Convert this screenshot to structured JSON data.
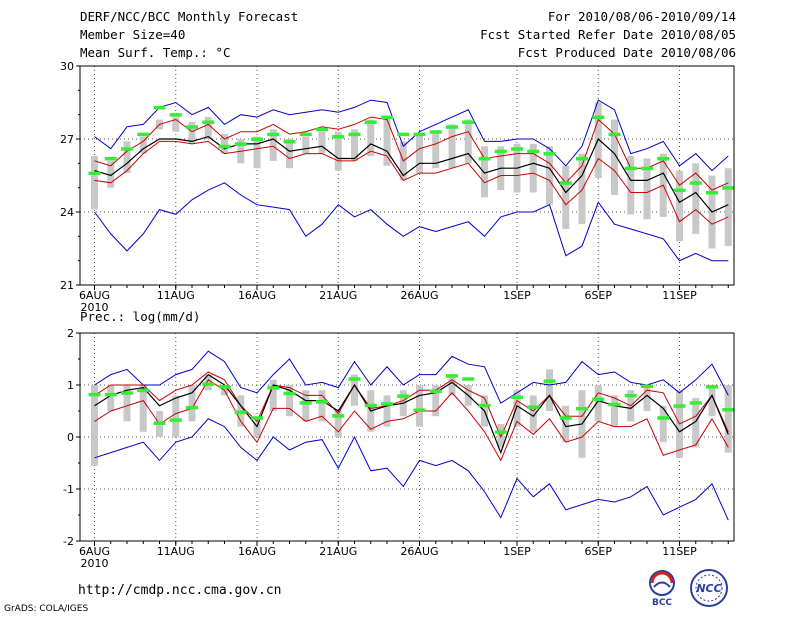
{
  "header": {
    "title": "DERF/NCC/BCC Monthly Forecast",
    "member_size": "Member Size=40",
    "variable": "Mean Surf. Temp.: °C",
    "forecast_range": "For 2010/08/06-2010/09/14",
    "started_refer": "Fcst Started Refer Date 2010/08/05",
    "produced": "Fcst Produced Date 2010/08/06"
  },
  "footer": {
    "url": "http://cmdp.ncc.cma.gov.cn",
    "credit": "GrADS: COLA/IGES",
    "logo_left": "BCC",
    "logo_right": "NCC"
  },
  "colors": {
    "max_min": "#0000cc",
    "sd": "#cc0000",
    "mean": "#000000",
    "median": "#33ee33",
    "box": "#c8c8c8",
    "grid": "#555555"
  },
  "chart_data": [
    {
      "type": "line",
      "title": "Mean Surf. Temp.: °C",
      "ylim": [
        21,
        30
      ],
      "yticks": [
        "21",
        "24",
        "27",
        "30"
      ],
      "ytick_values": [
        21,
        24,
        27,
        30
      ],
      "xtick_labels": [
        "6AUG",
        "11AUG",
        "16AUG",
        "21AUG",
        "26AUG",
        "1SEP",
        "6SEP",
        "11SEP"
      ],
      "xtick_day_index": [
        0,
        5,
        10,
        15,
        20,
        26,
        31,
        36
      ],
      "year_label": "2010",
      "grid": true,
      "series": [
        {
          "name": "max",
          "values": [
            27.1,
            26.6,
            27.5,
            27.6,
            28.3,
            28.5,
            28.0,
            28.3,
            27.6,
            28.0,
            27.9,
            28.2,
            28.0,
            28.1,
            28.2,
            28.1,
            28.3,
            28.6,
            28.5,
            26.7,
            27.3,
            27.6,
            27.9,
            28.2,
            26.9,
            26.9,
            27.0,
            27.0,
            26.6,
            25.9,
            26.7,
            28.6,
            28.2,
            26.4,
            26.6,
            26.9,
            25.9,
            26.4,
            25.7,
            26.3
          ]
        },
        {
          "name": "sd_upper",
          "values": [
            26.1,
            25.9,
            26.5,
            26.9,
            27.6,
            27.8,
            27.3,
            27.6,
            27.0,
            27.3,
            27.3,
            27.6,
            27.2,
            27.3,
            27.5,
            27.4,
            27.6,
            27.9,
            27.8,
            26.1,
            26.6,
            26.8,
            27.1,
            27.3,
            26.2,
            26.3,
            26.4,
            26.4,
            26.0,
            25.2,
            25.9,
            27.8,
            27.2,
            25.8,
            25.8,
            26.1,
            25.1,
            25.6,
            24.9,
            25.2
          ]
        },
        {
          "name": "mean",
          "values": [
            25.7,
            25.5,
            26.0,
            26.6,
            27.0,
            27.0,
            26.9,
            27.1,
            26.6,
            26.8,
            26.8,
            27.0,
            26.5,
            26.6,
            26.7,
            26.2,
            26.2,
            26.8,
            26.5,
            25.5,
            26.0,
            26.0,
            26.2,
            26.4,
            25.6,
            25.8,
            25.8,
            26.0,
            25.8,
            24.8,
            25.5,
            27.0,
            26.4,
            25.3,
            25.3,
            25.6,
            24.4,
            24.8,
            24.0,
            24.3
          ]
        },
        {
          "name": "sd_lower",
          "values": [
            25.3,
            25.2,
            25.7,
            26.4,
            26.9,
            26.9,
            26.8,
            26.9,
            26.4,
            26.5,
            26.6,
            26.7,
            26.2,
            26.4,
            26.4,
            26.1,
            26.1,
            26.5,
            26.3,
            25.3,
            25.6,
            25.6,
            25.8,
            26.0,
            25.2,
            25.5,
            25.5,
            25.6,
            25.3,
            24.3,
            24.9,
            26.2,
            25.7,
            24.8,
            24.8,
            25.1,
            23.6,
            24.1,
            23.5,
            23.8
          ]
        },
        {
          "name": "min",
          "values": [
            24.0,
            23.1,
            22.4,
            23.1,
            24.1,
            23.9,
            24.5,
            24.9,
            25.2,
            24.7,
            24.3,
            24.2,
            24.1,
            23.0,
            23.5,
            24.3,
            23.8,
            24.1,
            23.5,
            23.0,
            23.4,
            23.2,
            23.4,
            23.6,
            23.0,
            23.8,
            24.0,
            24.0,
            24.3,
            22.2,
            22.6,
            24.4,
            23.5,
            23.3,
            23.1,
            22.9,
            22.0,
            22.3,
            22.0,
            22.0
          ]
        },
        {
          "name": "median",
          "values": [
            25.6,
            26.2,
            26.6,
            27.2,
            28.3,
            28.0,
            27.5,
            27.7,
            26.7,
            26.8,
            27.0,
            27.2,
            26.9,
            27.2,
            27.4,
            27.1,
            27.2,
            27.7,
            27.9,
            27.2,
            27.2,
            27.3,
            27.5,
            27.7,
            26.2,
            26.5,
            26.6,
            26.5,
            26.4,
            25.2,
            26.2,
            27.9,
            27.2,
            25.8,
            25.8,
            26.2,
            24.9,
            25.2,
            24.8,
            25.0
          ]
        },
        {
          "name": "box_high",
          "values": [
            26.3,
            26.1,
            26.9,
            27.1,
            27.8,
            27.9,
            27.7,
            27.9,
            27.2,
            27.0,
            27.1,
            27.4,
            27.0,
            27.1,
            27.3,
            27.3,
            27.4,
            27.8,
            27.9,
            26.9,
            27.2,
            27.3,
            27.6,
            27.8,
            26.7,
            26.7,
            26.8,
            26.8,
            26.7,
            25.9,
            26.4,
            28.5,
            27.8,
            26.3,
            26.2,
            26.4,
            25.7,
            26.0,
            25.5,
            25.8
          ]
        },
        {
          "name": "box_low",
          "values": [
            24.1,
            25.0,
            25.6,
            26.4,
            27.4,
            27.3,
            26.8,
            27.0,
            26.4,
            26.0,
            25.8,
            26.1,
            25.8,
            26.4,
            26.4,
            25.7,
            26.1,
            26.3,
            25.9,
            25.3,
            25.6,
            25.8,
            25.8,
            26.0,
            24.6,
            24.9,
            24.8,
            24.8,
            24.3,
            23.3,
            23.5,
            25.4,
            24.7,
            23.9,
            23.7,
            23.8,
            22.8,
            23.1,
            22.5,
            22.6
          ]
        }
      ]
    },
    {
      "type": "line",
      "title": "Prec.: log(mm/d)",
      "ylim": [
        -2,
        2
      ],
      "yticks": [
        "-2",
        "-1",
        "0",
        "1",
        "2"
      ],
      "ytick_values": [
        -2,
        -1,
        0,
        1,
        2
      ],
      "xtick_labels": [
        "6AUG",
        "11AUG",
        "16AUG",
        "21AUG",
        "26AUG",
        "1SEP",
        "6SEP",
        "11SEP"
      ],
      "xtick_day_index": [
        0,
        5,
        10,
        15,
        20,
        26,
        31,
        36
      ],
      "year_label": "2010",
      "grid": true,
      "series": [
        {
          "name": "max",
          "values": [
            1.0,
            1.2,
            1.3,
            1.0,
            1.0,
            1.2,
            1.3,
            1.65,
            1.45,
            0.95,
            0.85,
            1.2,
            1.5,
            1.0,
            1.05,
            0.95,
            1.45,
            1.0,
            1.35,
            1.0,
            1.2,
            1.2,
            1.55,
            1.4,
            1.35,
            0.65,
            0.85,
            1.05,
            1.0,
            1.05,
            1.45,
            1.2,
            1.25,
            1.05,
            1.0,
            1.1,
            0.85,
            1.1,
            1.4,
            0.8
          ]
        },
        {
          "name": "sd_upper",
          "values": [
            0.8,
            1.0,
            1.0,
            1.0,
            0.7,
            0.9,
            1.0,
            1.25,
            1.1,
            0.6,
            0.3,
            1.0,
            0.95,
            0.8,
            0.8,
            0.45,
            1.0,
            0.55,
            0.6,
            0.7,
            0.9,
            0.9,
            1.1,
            0.9,
            0.75,
            0.0,
            0.7,
            0.5,
            0.8,
            0.4,
            0.4,
            0.85,
            0.75,
            0.6,
            0.9,
            0.85,
            0.25,
            0.4,
            0.8,
            0.1
          ]
        },
        {
          "name": "mean",
          "values": [
            0.6,
            0.8,
            0.9,
            0.95,
            0.6,
            0.75,
            0.85,
            1.2,
            1.0,
            0.6,
            0.2,
            1.0,
            0.9,
            0.7,
            0.7,
            0.5,
            1.0,
            0.5,
            0.6,
            0.65,
            0.8,
            0.85,
            1.05,
            0.8,
            0.5,
            -0.3,
            0.6,
            0.4,
            0.8,
            0.2,
            0.25,
            0.7,
            0.6,
            0.55,
            0.8,
            0.55,
            0.1,
            0.3,
            0.8,
            0.05
          ]
        },
        {
          "name": "sd_lower",
          "values": [
            0.3,
            0.5,
            0.6,
            0.7,
            0.25,
            0.45,
            0.55,
            1.1,
            0.9,
            0.3,
            -0.1,
            0.55,
            0.55,
            0.3,
            0.4,
            0.1,
            0.5,
            0.15,
            0.3,
            0.35,
            0.5,
            0.5,
            0.85,
            0.5,
            0.1,
            -0.45,
            0.3,
            0.05,
            0.35,
            -0.1,
            0.0,
            0.3,
            0.2,
            0.2,
            0.35,
            -0.35,
            -0.25,
            -0.15,
            0.35,
            -0.2
          ]
        },
        {
          "name": "min",
          "values": [
            -0.4,
            -0.3,
            -0.2,
            -0.1,
            -0.45,
            -0.1,
            0.0,
            0.35,
            0.2,
            -0.2,
            -0.45,
            0.0,
            -0.25,
            -0.1,
            -0.05,
            -0.6,
            0.0,
            -0.65,
            -0.6,
            -0.95,
            -0.45,
            -0.55,
            -0.45,
            -0.65,
            -1.05,
            -1.55,
            -0.8,
            -1.15,
            -0.9,
            -1.4,
            -1.3,
            -1.2,
            -1.25,
            -1.15,
            -0.95,
            -1.5,
            -1.35,
            -1.2,
            -0.9,
            -1.6
          ]
        },
        {
          "name": "median",
          "values": [
            0.82,
            0.82,
            0.85,
            0.9,
            0.27,
            0.33,
            0.57,
            1.02,
            0.97,
            0.48,
            0.37,
            0.95,
            0.84,
            0.66,
            0.68,
            0.41,
            1.12,
            0.61,
            0.64,
            0.79,
            0.52,
            0.88,
            1.18,
            1.12,
            0.61,
            0.1,
            0.77,
            0.58,
            1.08,
            0.37,
            0.55,
            0.73,
            0.63,
            0.8,
            0.98,
            0.37,
            0.6,
            0.66,
            0.97,
            0.53
          ]
        },
        {
          "name": "box_high",
          "values": [
            1.0,
            1.0,
            1.0,
            1.0,
            0.5,
            0.8,
            1.0,
            1.2,
            1.0,
            0.8,
            0.3,
            1.1,
            1.0,
            0.9,
            0.9,
            0.5,
            1.2,
            0.9,
            0.8,
            0.9,
            1.0,
            1.0,
            1.2,
            1.0,
            0.8,
            0.25,
            0.9,
            0.8,
            1.3,
            0.6,
            0.9,
            1.0,
            0.8,
            0.9,
            1.0,
            0.6,
            0.9,
            0.75,
            1.0,
            1.0
          ]
        },
        {
          "name": "box_low",
          "values": [
            -0.55,
            0.5,
            0.3,
            0.1,
            0.0,
            0.0,
            0.3,
            0.9,
            0.8,
            0.2,
            0.0,
            0.5,
            0.4,
            0.3,
            0.3,
            0.0,
            0.6,
            0.1,
            0.2,
            0.4,
            0.2,
            0.4,
            0.8,
            0.6,
            0.2,
            -0.2,
            0.2,
            0.1,
            0.5,
            -0.1,
            -0.4,
            0.3,
            0.2,
            0.3,
            0.5,
            -0.1,
            -0.4,
            -0.2,
            0.4,
            -0.3
          ]
        }
      ]
    }
  ]
}
